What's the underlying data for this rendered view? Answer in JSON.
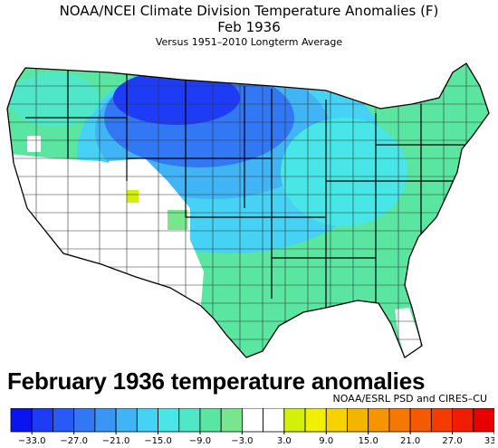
{
  "header": {
    "title": "NOAA/NCEI Climate Division Temperature Anomalies (F)",
    "month": "Feb 1936",
    "baseline": "Versus 1951–2010 Longterm Average"
  },
  "caption": "February 1936 temperature anomalies",
  "credit": "NOAA/ESRL PSD and CIRES–CU",
  "map": {
    "region": "contiguous-united-states",
    "units": "F",
    "coldest_area": "northern plains / Montana – Dakotas",
    "no_data_color": "#ffffff",
    "background": "#ffffff"
  },
  "colorbar": {
    "ticks": [
      "−33.0",
      "−27.0",
      "−21.0",
      "−15.0",
      "−9.0",
      "−3.0",
      "3.0",
      "9.0",
      "15.0",
      "21.0",
      "27.0",
      "33.0"
    ],
    "colors": [
      "#0a14f0",
      "#1e3cf5",
      "#2a5af5",
      "#3278f5",
      "#3a96f5",
      "#40b4f5",
      "#46d2f5",
      "#48e6e6",
      "#50e6c8",
      "#5ae6a0",
      "#78e68c",
      "#ffffff",
      "#ffffff",
      "#d2f00a",
      "#f0f000",
      "#f5d200",
      "#f5b400",
      "#f59600",
      "#f57800",
      "#f55a00",
      "#f53c00",
      "#f01e00",
      "#e60000"
    ]
  }
}
